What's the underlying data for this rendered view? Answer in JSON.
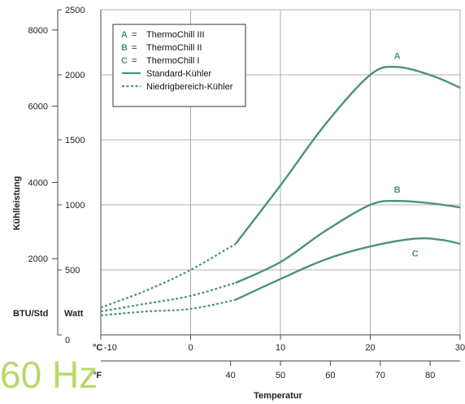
{
  "frequency_label": "60 Hz",
  "colors": {
    "curve": "#4a9479",
    "grid": "#9a9a9a",
    "key": "#4a9479",
    "frequency": "#b9d96a"
  },
  "chart_data": {
    "type": "line",
    "ylabel": "Kühlleistung",
    "xlabel": "Temperatur",
    "unit_labels": {
      "btu": "BTU/Std",
      "watt": "Watt",
      "celsius": "°C",
      "fahrenheit": "°F"
    },
    "x_celsius_range": [
      -10,
      30
    ],
    "watt_range": [
      0,
      2500
    ],
    "celsius_ticks": [
      -10,
      0,
      10,
      20,
      30
    ],
    "fahrenheit_ticks": [
      40,
      50,
      60,
      70,
      80
    ],
    "watt_ticks": [
      0,
      500,
      1000,
      1500,
      2000,
      2500
    ],
    "btu_ticks": [
      2000,
      4000,
      6000,
      8000
    ],
    "grid": true,
    "legend": {
      "position": "top-left",
      "items": [
        {
          "key": "A",
          "eq": "=",
          "label": "ThermoChill III"
        },
        {
          "key": "B",
          "eq": "=",
          "label": "ThermoChill II"
        },
        {
          "key": "C",
          "eq": "=",
          "label": "ThermoChill I"
        },
        {
          "style": "solid",
          "label": "Standard-Kühler"
        },
        {
          "style": "dashed",
          "label": "Niedrigbereich-Kühler"
        }
      ]
    },
    "series": [
      {
        "name": "A",
        "low_range": [
          [
            -10,
            210
          ],
          [
            -5,
            340
          ],
          [
            0,
            500
          ],
          [
            5,
            700
          ]
        ],
        "standard": [
          [
            5,
            700
          ],
          [
            10,
            1150
          ],
          [
            15,
            1620
          ],
          [
            20,
            2000
          ],
          [
            23,
            2060
          ],
          [
            27,
            1990
          ],
          [
            30,
            1900
          ]
        ]
      },
      {
        "name": "B",
        "low_range": [
          [
            -10,
            180
          ],
          [
            -5,
            240
          ],
          [
            0,
            300
          ],
          [
            5,
            400
          ]
        ],
        "standard": [
          [
            5,
            400
          ],
          [
            10,
            560
          ],
          [
            15,
            800
          ],
          [
            20,
            1000
          ],
          [
            23,
            1030
          ],
          [
            27,
            1010
          ],
          [
            30,
            980
          ]
        ]
      },
      {
        "name": "C",
        "low_range": [
          [
            -10,
            150
          ],
          [
            -5,
            180
          ],
          [
            0,
            200
          ],
          [
            5,
            270
          ]
        ],
        "standard": [
          [
            5,
            270
          ],
          [
            10,
            430
          ],
          [
            15,
            580
          ],
          [
            20,
            680
          ],
          [
            25,
            740
          ],
          [
            28,
            730
          ],
          [
            30,
            700
          ]
        ]
      }
    ]
  }
}
